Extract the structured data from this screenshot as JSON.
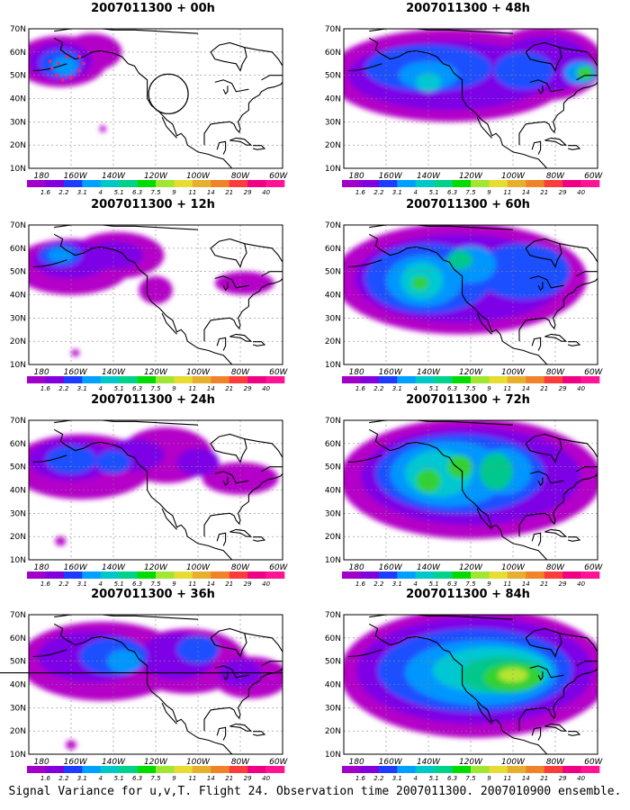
{
  "panels": [
    {
      "title": "2007011300 + 00h",
      "intensity": 0
    },
    {
      "title": "2007011300 + 48h",
      "intensity": 4
    },
    {
      "title": "2007011300 + 12h",
      "intensity": 1
    },
    {
      "title": "2007011300 + 60h",
      "intensity": 5
    },
    {
      "title": "2007011300 + 24h",
      "intensity": 2
    },
    {
      "title": "2007011300 + 72h",
      "intensity": 6
    },
    {
      "title": "2007011300 + 36h",
      "intensity": 3
    },
    {
      "title": "2007011300 + 84h",
      "intensity": 7
    }
  ],
  "lat_labels": [
    "70N",
    "60N",
    "50N",
    "40N",
    "30N",
    "20N",
    "10N"
  ],
  "lon_labels": [
    "180",
    "160W",
    "140W",
    "120W",
    "100W",
    "80W",
    "60W"
  ],
  "colorbar": {
    "labels": [
      "1.6",
      "2.2",
      "3.1",
      "4",
      "5.1",
      "6.3",
      "7.5",
      "9",
      "11",
      "14",
      "21",
      "29",
      "40"
    ],
    "colors": [
      "#a000c8",
      "#8200dc",
      "#1e3cff",
      "#00a0ff",
      "#00c8c8",
      "#00d28c",
      "#00dc00",
      "#a0e632",
      "#e6dc32",
      "#e6af2d",
      "#f08228",
      "#fa3c3c",
      "#f00082",
      "#ff1493"
    ]
  },
  "caption": "Signal Variance for u,v,T. Flight 24. Observation time 2007011300. 2007010900 ensemble."
}
